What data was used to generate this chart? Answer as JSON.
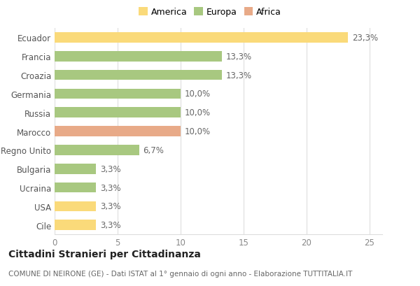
{
  "countries": [
    "Ecuador",
    "Francia",
    "Croazia",
    "Germania",
    "Russia",
    "Marocco",
    "Regno Unito",
    "Bulgaria",
    "Ucraina",
    "USA",
    "Cile"
  ],
  "values": [
    23.3,
    13.3,
    13.3,
    10.0,
    10.0,
    10.0,
    6.7,
    3.3,
    3.3,
    3.3,
    3.3
  ],
  "labels": [
    "23,3%",
    "13,3%",
    "13,3%",
    "10,0%",
    "10,0%",
    "10,0%",
    "6,7%",
    "3,3%",
    "3,3%",
    "3,3%",
    "3,3%"
  ],
  "colors": [
    "#FADA7A",
    "#A8C880",
    "#A8C880",
    "#A8C880",
    "#A8C880",
    "#E8AA88",
    "#A8C880",
    "#A8C880",
    "#A8C880",
    "#FADA7A",
    "#FADA7A"
  ],
  "legend_labels": [
    "America",
    "Europa",
    "Africa"
  ],
  "legend_colors": [
    "#FADA7A",
    "#A8C880",
    "#E8AA88"
  ],
  "title": "Cittadini Stranieri per Cittadinanza",
  "subtitle": "COMUNE DI NEIRONE (GE) - Dati ISTAT al 1° gennaio di ogni anno - Elaborazione TUTTITALIA.IT",
  "xlim": [
    0,
    26
  ],
  "xticks": [
    0,
    5,
    10,
    15,
    20,
    25
  ],
  "background_color": "#ffffff",
  "grid_color": "#dddddd",
  "bar_height": 0.55,
  "title_fontsize": 10,
  "subtitle_fontsize": 7.5,
  "label_fontsize": 8.5,
  "tick_fontsize": 8.5,
  "legend_fontsize": 9
}
